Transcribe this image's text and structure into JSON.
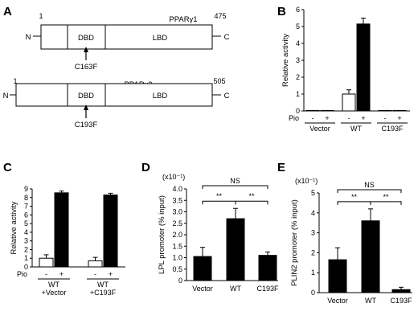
{
  "panel_A": {
    "letter": "A",
    "proteins": [
      {
        "name": "PPARγ1",
        "start_label": "1",
        "end_label": "475",
        "n_label": "N",
        "c_label": "C",
        "domains": [
          "DBD",
          "LBD"
        ],
        "mutation": "C163F"
      },
      {
        "name": "PPARγ2",
        "start_label": "1",
        "end_label": "505",
        "n_label": "N",
        "c_label": "C",
        "domains": [
          "DBD",
          "LBD"
        ],
        "mutation": "C193F"
      }
    ]
  },
  "chart_data": [
    {
      "panel": "B",
      "type": "bar",
      "ylabel": "Relative activity",
      "ylim": [
        0,
        6
      ],
      "yticks": [
        "0",
        "1",
        "2",
        "3",
        "4",
        "5",
        "6"
      ],
      "factor_label": "Pio",
      "groups": [
        {
          "name": "Vector",
          "signs": [
            "-",
            "+"
          ]
        },
        {
          "name": "WT",
          "signs": [
            "-",
            "+"
          ]
        },
        {
          "name": "C193F",
          "signs": [
            "-",
            "+"
          ]
        }
      ],
      "series": [
        {
          "sign": "-",
          "fill": "white",
          "values": [
            0.02,
            1.0,
            0.02
          ],
          "errors": [
            0.01,
            0.25,
            0.01
          ]
        },
        {
          "sign": "+",
          "fill": "black",
          "values": [
            0.02,
            5.15,
            0.02
          ],
          "errors": [
            0.01,
            0.35,
            0.01
          ]
        }
      ]
    },
    {
      "panel": "C",
      "type": "bar",
      "ylabel": "Relative activity",
      "ylim": [
        0,
        9
      ],
      "yticks": [
        "0",
        "1",
        "2",
        "3",
        "4",
        "5",
        "6",
        "7",
        "8",
        "9"
      ],
      "factor_label": "Pio",
      "groups": [
        {
          "name": "WT",
          "sub": "+Vector",
          "signs": [
            "-",
            "+"
          ]
        },
        {
          "name": "WT",
          "sub": "+C193F",
          "signs": [
            "-",
            "+"
          ]
        }
      ],
      "series": [
        {
          "sign": "-",
          "fill": "white",
          "values": [
            1.0,
            0.7
          ],
          "errors": [
            0.4,
            0.4
          ]
        },
        {
          "sign": "+",
          "fill": "black",
          "values": [
            8.55,
            8.3
          ],
          "errors": [
            0.2,
            0.2
          ]
        }
      ]
    },
    {
      "panel": "D",
      "type": "bar",
      "ylabel": "LPL promoter (% input)",
      "scale_label": "(x10⁻¹)",
      "ylim": [
        0,
        4
      ],
      "yticks": [
        "0",
        "0.5",
        "1.0",
        "1.5",
        "2.0",
        "2.5",
        "3.0",
        "3.5",
        "4.0"
      ],
      "categories": [
        "Vector",
        "WT",
        "C193F"
      ],
      "values": [
        1.05,
        2.7,
        1.1
      ],
      "errors": [
        0.4,
        0.45,
        0.15
      ],
      "significance": [
        {
          "from": 0,
          "to": 1,
          "label": "**"
        },
        {
          "from": 1,
          "to": 2,
          "label": "**"
        },
        {
          "from": 0,
          "to": 2,
          "label": "NS"
        }
      ]
    },
    {
      "panel": "E",
      "type": "bar",
      "ylabel": "PLIN2 promoter (% input)",
      "scale_label": "(x10⁻¹)",
      "ylim": [
        0,
        5
      ],
      "yticks": [
        "0",
        "1",
        "2",
        "3",
        "4",
        "5"
      ],
      "categories": [
        "Vector",
        "WT",
        "C193F"
      ],
      "values": [
        1.65,
        3.6,
        0.15
      ],
      "errors": [
        0.6,
        0.6,
        0.12
      ],
      "significance": [
        {
          "from": 0,
          "to": 1,
          "label": "**"
        },
        {
          "from": 1,
          "to": 2,
          "label": "**"
        },
        {
          "from": 0,
          "to": 2,
          "label": "NS"
        }
      ]
    }
  ]
}
